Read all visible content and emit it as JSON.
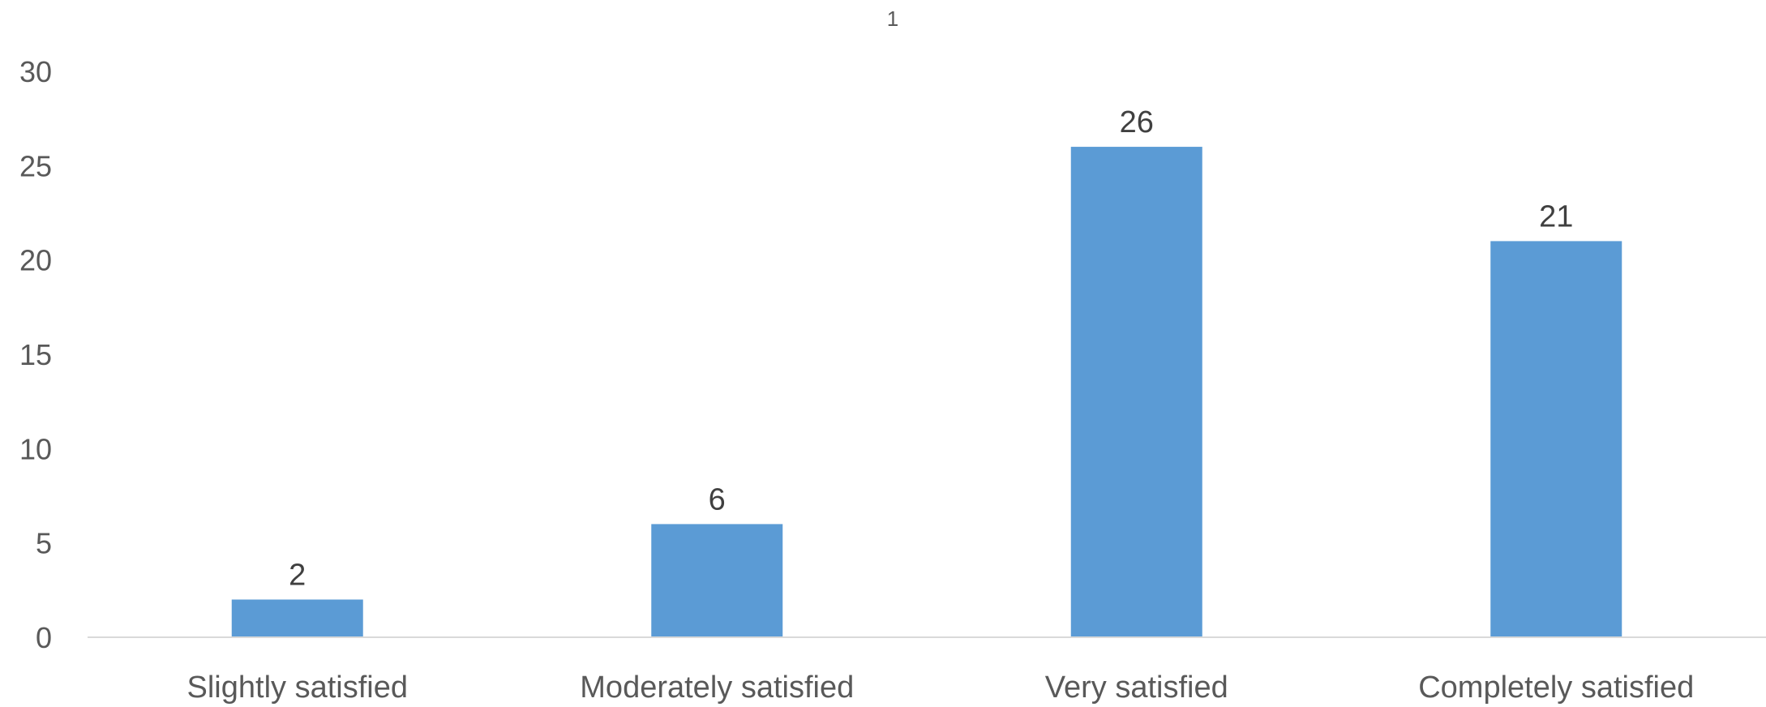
{
  "chart_data": {
    "type": "bar",
    "title": "1",
    "categories": [
      "Slightly satisfied",
      "Moderately satisfied",
      "Very satisfied",
      "Completely satisfied"
    ],
    "values": [
      2,
      6,
      26,
      21
    ],
    "data_labels": [
      "2",
      "6",
      "26",
      "21"
    ],
    "xlabel": "",
    "ylabel": "",
    "ylim": [
      0,
      30
    ],
    "yticks": [
      0,
      5,
      10,
      15,
      20,
      25,
      30
    ],
    "grid": false,
    "legend": "none",
    "bar_color": "#5B9BD5",
    "axis_color": "#D9D9D9"
  }
}
